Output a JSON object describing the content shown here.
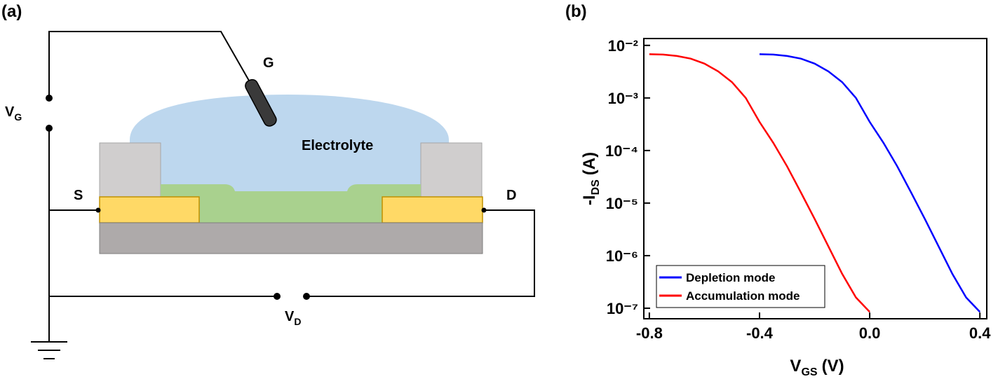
{
  "diagram": {
    "panel_label": "(a)",
    "gate_label": "G",
    "gate_voltage": {
      "label": "V",
      "sub": "G"
    },
    "electrolyte_label": "Electrolyte",
    "source_label": "S",
    "drain_label": "D",
    "drain_voltage": {
      "label": "V",
      "sub": "D"
    }
  },
  "chart_data": {
    "type": "line",
    "panel_label": "(b)",
    "x_label": {
      "main": "V",
      "sub": "GS",
      "unit": "(V)"
    },
    "y_label": {
      "main": "-I",
      "sub": "DS",
      "unit": "(A)"
    },
    "xlim": [
      -0.82,
      0.425
    ],
    "xticks": [
      -0.8,
      -0.4,
      {
        "value": 0,
        "label": "0.0"
      },
      0.4
    ],
    "ylim": [
      6.3e-08,
      0.0135
    ],
    "log_y": true,
    "yticks": [
      {
        "value": 1e-07,
        "label": "10⁻⁷"
      },
      {
        "value": 1e-06,
        "label": "10⁻⁶"
      },
      {
        "value": 1e-05,
        "label": "10⁻⁵"
      },
      {
        "value": 0.0001,
        "label": "10⁻⁴"
      },
      {
        "value": 0.001,
        "label": "10⁻³"
      },
      {
        "value": 0.01,
        "label": "10⁻²"
      }
    ],
    "legend": "lower left",
    "series": [
      {
        "name": "Depletion mode",
        "color": "#0000ff",
        "x": [
          -0.4,
          -0.35,
          -0.3,
          -0.25,
          -0.2,
          -0.15,
          -0.1,
          -0.05,
          0,
          0.05,
          0.1,
          0.15,
          0.2,
          0.25,
          0.3,
          0.35,
          0.4
        ],
        "values": [
          0.0068,
          0.0067,
          0.0063,
          0.0056,
          0.0045,
          0.0032,
          0.002,
          0.001,
          0.00035,
          0.00014,
          5e-05,
          1.6e-05,
          5e-06,
          1.5e-06,
          4.5e-07,
          1.6e-07,
          8.5e-08
        ]
      },
      {
        "name": "Accumulation mode",
        "color": "#ff0000",
        "x": [
          -0.8,
          -0.75,
          -0.7,
          -0.65,
          -0.6,
          -0.55,
          -0.5,
          -0.45,
          -0.4,
          -0.35,
          -0.3,
          -0.25,
          -0.2,
          -0.15,
          -0.1,
          -0.05,
          0
        ],
        "values": [
          0.0068,
          0.0067,
          0.0063,
          0.0056,
          0.0045,
          0.0032,
          0.002,
          0.001,
          0.00035,
          0.00014,
          5e-05,
          1.6e-05,
          5e-06,
          1.5e-06,
          4.5e-07,
          1.6e-07,
          8.5e-08
        ]
      }
    ]
  }
}
